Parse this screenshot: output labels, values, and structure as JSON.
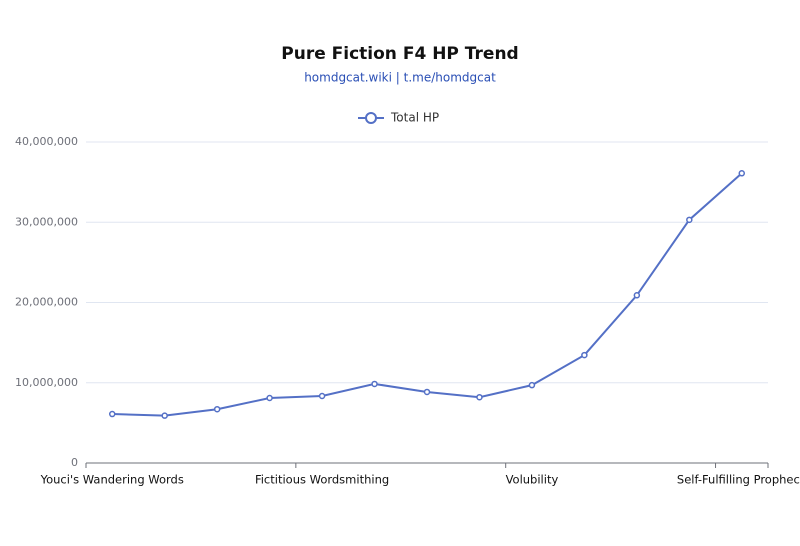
{
  "chart_data": {
    "type": "line",
    "title": "Pure Fiction F4 HP Trend",
    "subtitle": "homdgcat.wiki | t.me/homdgcat",
    "categories": [
      "Youci's Wandering Words",
      null,
      null,
      null,
      "Fictitious Wordsmithing",
      null,
      null,
      null,
      "Volubility",
      null,
      null,
      null,
      "Self-Fulfilling Prophecy"
    ],
    "series": [
      {
        "name": "Total HP",
        "color": "#5470c6",
        "values": [
          6100000,
          5900000,
          6700000,
          8100000,
          8350000,
          9850000,
          8850000,
          8200000,
          9700000,
          13450000,
          20900000,
          30300000,
          36100000
        ]
      }
    ],
    "ylim": [
      0,
      40000000
    ],
    "yticks": [
      0,
      {
        "value": 10000000,
        "label": "10,000,000"
      },
      {
        "value": 20000000,
        "label": "20,000,000"
      },
      {
        "value": 30000000,
        "label": "30,000,000"
      },
      {
        "value": 40000000,
        "label": "40,000,000"
      }
    ],
    "grid": true,
    "legend": "top"
  }
}
